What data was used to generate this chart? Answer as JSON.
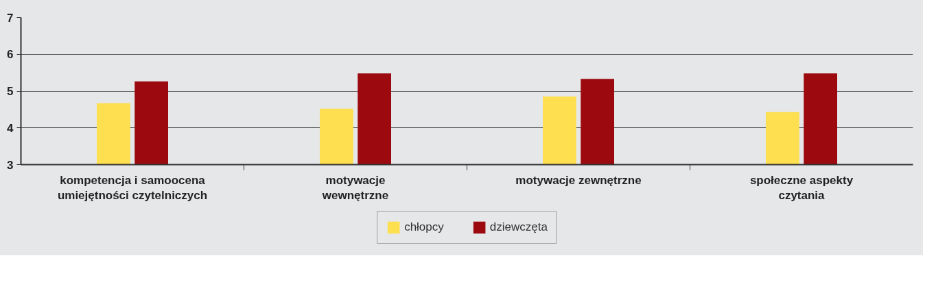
{
  "chart_data": {
    "type": "bar",
    "categories": [
      "kompetencja i samoocena\numiejętności czytelniczych",
      "motywacje\nwewnętrzne",
      "motywacje zewnętrzne",
      "społeczne aspekty\nczytania"
    ],
    "series": [
      {
        "name": "chłopcy",
        "color": "#fddf4f",
        "values": [
          4.67,
          4.52,
          4.85,
          4.43
        ]
      },
      {
        "name": "dziewczęta",
        "color": "#9c0a0f",
        "values": [
          5.26,
          5.48,
          5.33,
          5.48
        ]
      }
    ],
    "ylim": [
      3,
      7
    ],
    "yticks": [
      3,
      4,
      5,
      6,
      7
    ],
    "grid": "y",
    "legend": "bottom"
  }
}
